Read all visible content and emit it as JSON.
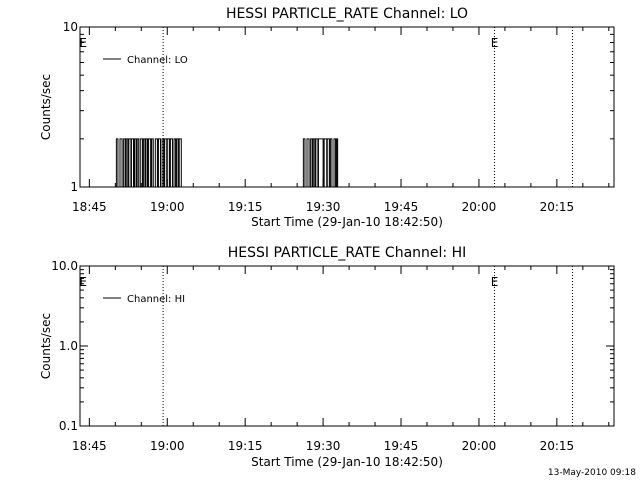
{
  "footer_timestamp": "13-May-2010 09:18",
  "chart_data": [
    {
      "type": "line",
      "title": "HESSI PARTICLE_RATE Channel: LO",
      "xlabel": "Start Time (29-Jan-10 18:42:50)",
      "ylabel": "Counts/sec",
      "yscale": "log",
      "ylim": [
        1,
        10
      ],
      "y_tick_values": [
        1,
        10
      ],
      "y_tick_labels": [
        "1",
        "10"
      ],
      "xlim_minutes": [
        -1.8,
        101
      ],
      "x_tick_values": [
        0,
        15,
        30,
        45,
        60,
        75,
        90
      ],
      "x_tick_labels": [
        "18:45",
        "19:00",
        "19:15",
        "19:30",
        "19:45",
        "20:00",
        "20:15"
      ],
      "grid": false,
      "legend_position": "top-left",
      "series": [
        {
          "name": "Channel: LO",
          "x": [
            5,
            5.2,
            5.3,
            5.5,
            5.6,
            5.9,
            6,
            6.3,
            6.4,
            6.6,
            6.7,
            6.9,
            7.1,
            7.3,
            7.4,
            7.6,
            7.8,
            8,
            8.1,
            8.3,
            8.5,
            8.7,
            8.8,
            9,
            9.2,
            9.4,
            9.5,
            9.7,
            9.8,
            10,
            10.2,
            10.4,
            10.5,
            10.7,
            10.9,
            11.1,
            11.2,
            11.4,
            11.6,
            11.8,
            12,
            12.2,
            12.3,
            12.5,
            12.7,
            13,
            13.1,
            13.3,
            13.5,
            13.7,
            14,
            14.2,
            14.3,
            14.5,
            14.7,
            14.9,
            15,
            15.2,
            15.4,
            15.6,
            15.7,
            16,
            16.1,
            16.3,
            16.4,
            16.6,
            16.8,
            17,
            17.1,
            17.3,
            17.5,
            17.7
          ],
          "y": [
            1,
            2,
            2,
            1,
            1,
            2,
            2,
            1,
            1,
            2,
            2,
            1,
            2,
            2,
            1,
            2,
            2,
            1,
            2,
            2,
            1,
            2,
            2,
            1,
            2,
            2,
            1,
            1,
            2,
            2,
            1,
            2,
            2,
            1,
            2,
            2,
            1,
            2,
            2,
            1,
            2,
            2,
            1,
            1,
            2,
            2,
            1,
            2,
            2,
            1,
            2,
            2,
            1,
            2,
            2,
            1,
            2,
            2,
            1,
            2,
            2,
            1,
            1,
            2,
            2,
            1,
            2,
            2,
            1,
            2,
            2,
            1
          ],
          "x2": [
            41,
            41.2,
            41.3,
            41.5,
            41.6,
            41.9,
            42,
            42.3,
            42.4,
            42.6,
            42.7,
            42.9,
            43.1,
            43.3,
            43.4,
            43.6,
            43.8,
            44,
            44.1,
            44.3,
            44.5,
            44.7,
            44.8,
            45,
            45.2,
            45.4,
            45.5,
            45.7,
            45.8,
            46,
            46.2,
            46.4,
            46.5,
            46.7,
            46.9,
            47.1,
            47.2,
            47.4,
            47.6,
            47.8
          ],
          "y2": [
            1,
            2,
            2,
            1,
            1,
            2,
            2,
            1,
            1,
            2,
            2,
            1,
            2,
            2,
            1,
            2,
            2,
            1,
            2,
            2,
            2,
            2,
            2,
            1,
            2,
            2,
            2,
            1,
            2,
            2,
            1,
            2,
            2,
            1,
            1,
            2,
            2,
            1,
            2,
            1
          ]
        }
      ],
      "event_markers": [
        {
          "x_minutes": -1.2,
          "label": "E",
          "dotted": false
        },
        {
          "x_minutes": 14.2,
          "label": "",
          "dotted": true
        },
        {
          "x_minutes": 78,
          "label": "E",
          "dotted": true
        },
        {
          "x_minutes": 93,
          "label": "",
          "dotted": true
        }
      ]
    },
    {
      "type": "line",
      "title": "HESSI PARTICLE_RATE Channel: HI",
      "xlabel": "Start Time (29-Jan-10 18:42:50)",
      "ylabel": "Counts/sec",
      "yscale": "log",
      "ylim": [
        0.1,
        10
      ],
      "y_tick_values": [
        0.1,
        1,
        10
      ],
      "y_tick_labels": [
        "0.1",
        "1.0",
        "10.0"
      ],
      "xlim_minutes": [
        -1.8,
        101
      ],
      "x_tick_values": [
        0,
        15,
        30,
        45,
        60,
        75,
        90
      ],
      "x_tick_labels": [
        "18:45",
        "19:00",
        "19:15",
        "19:30",
        "19:45",
        "20:00",
        "20:15"
      ],
      "grid": false,
      "legend_position": "top-left",
      "series": [
        {
          "name": "Channel: HI",
          "x": [],
          "y": []
        }
      ],
      "event_markers": [
        {
          "x_minutes": -1.2,
          "label": "E",
          "dotted": false
        },
        {
          "x_minutes": 14.2,
          "label": "",
          "dotted": true
        },
        {
          "x_minutes": 78,
          "label": "E",
          "dotted": true
        },
        {
          "x_minutes": 93,
          "label": "",
          "dotted": true
        }
      ]
    }
  ]
}
